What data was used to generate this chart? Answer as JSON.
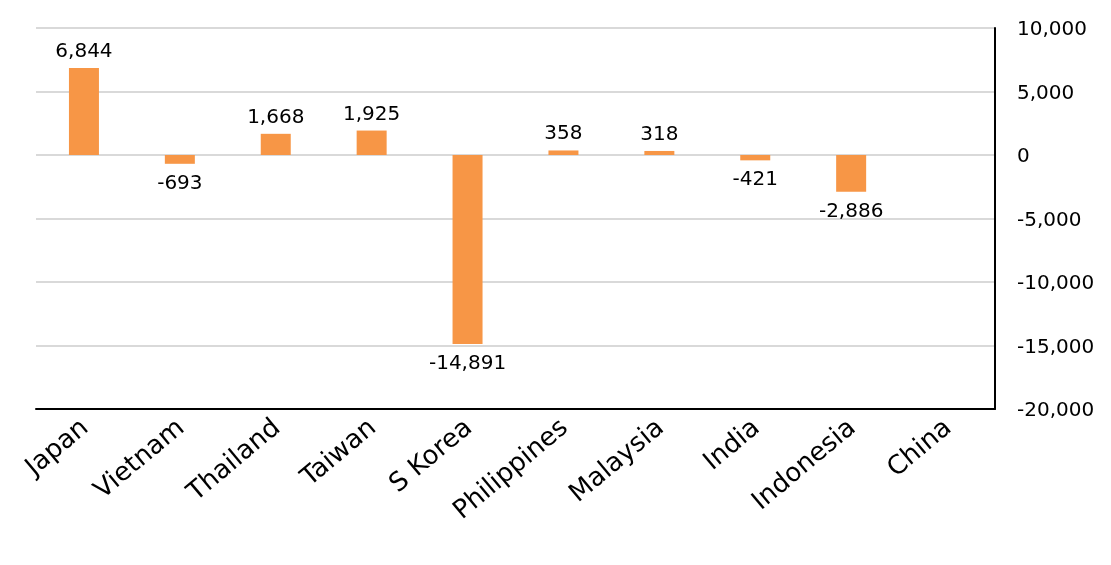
{
  "chart_data": {
    "type": "bar",
    "categories": [
      "Japan",
      "Vietnam",
      "Thailand",
      "Taiwan",
      "S Korea",
      "Philippines",
      "Malaysia",
      "India",
      "Indonesia",
      "China"
    ],
    "values": [
      6844,
      -693,
      1668,
      1925,
      -14891,
      358,
      318,
      -421,
      -2886,
      null
    ],
    "value_labels": [
      "6,844",
      "-693",
      "1,668",
      "1,925",
      "-14,891",
      "358",
      "318",
      "-421",
      "-2,886",
      null
    ],
    "color": "#f79646",
    "ylim": [
      -20000,
      10000
    ],
    "yticks": [
      {
        "value": -20000,
        "label": "-20,000"
      },
      {
        "value": -15000,
        "label": "-15,000"
      },
      {
        "value": -10000,
        "label": "-10,000"
      },
      {
        "value": -5000,
        "label": "-5,000"
      },
      0,
      {
        "value": 5000,
        "label": "5,000"
      },
      {
        "value": 10000,
        "label": "10,000"
      }
    ],
    "grid": "y"
  }
}
